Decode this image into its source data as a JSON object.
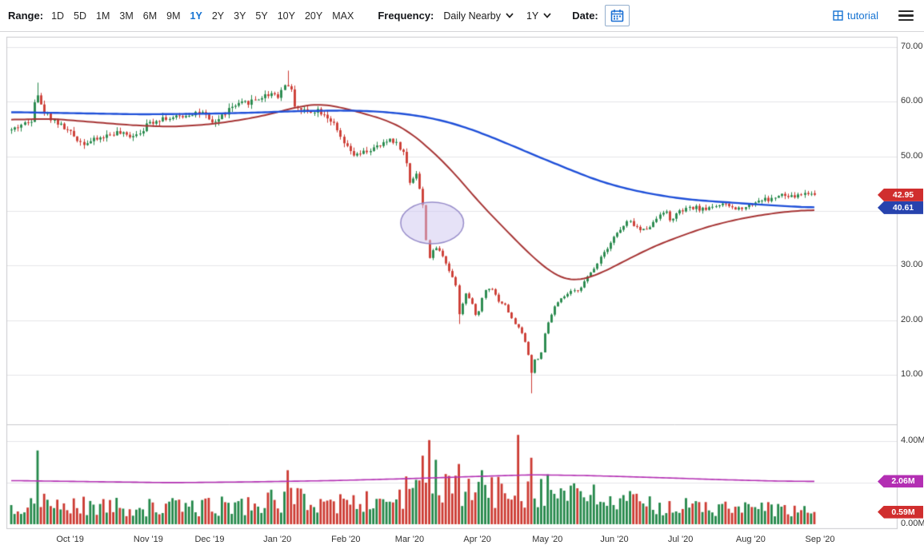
{
  "toolbar": {
    "range_label": "Range:",
    "range_options": [
      "1D",
      "5D",
      "1M",
      "3M",
      "6M",
      "9M",
      "1Y",
      "2Y",
      "3Y",
      "5Y",
      "10Y",
      "20Y",
      "MAX"
    ],
    "active_range": "1Y",
    "frequency_label": "Frequency:",
    "frequency_value": "Daily Nearby",
    "period_value": "1Y",
    "date_label": "Date:",
    "tutorial_label": "tutorial",
    "accent_color": "#1673d2"
  },
  "badges": [
    {
      "id": "last-price",
      "label": "42.95",
      "panel": "price",
      "value": 42.95,
      "color": "#d02e2e"
    },
    {
      "id": "blue-ma",
      "label": "40.61",
      "panel": "price",
      "value": 40.61,
      "color": "#2743ae"
    },
    {
      "id": "avg-volume",
      "label": "2.06M",
      "panel": "volume",
      "value": 2.06,
      "color": "#b32fb3"
    },
    {
      "id": "last-volume",
      "label": "0.59M",
      "panel": "volume",
      "value": 0.59,
      "color": "#d02e2e"
    }
  ],
  "axes": {
    "price_ticks": [
      {
        "label": "70.00",
        "value": 70
      },
      {
        "label": "60.00",
        "value": 60
      },
      {
        "label": "50.00",
        "value": 50
      },
      {
        "label": "30.00",
        "value": 30
      },
      {
        "label": "20.00",
        "value": 20
      },
      {
        "label": "10.00",
        "value": 10
      }
    ],
    "volume_ticks": [
      {
        "label": "4.00M",
        "value": 4
      },
      {
        "label": "0.00M",
        "value": 0
      }
    ],
    "x_labels": [
      {
        "label": "Oct '19",
        "t": 0.075
      },
      {
        "label": "Nov '19",
        "t": 0.172
      },
      {
        "label": "Dec '19",
        "t": 0.248
      },
      {
        "label": "Jan '20",
        "t": 0.332
      },
      {
        "label": "Feb '20",
        "t": 0.417
      },
      {
        "label": "Mar '20",
        "t": 0.496
      },
      {
        "label": "Apr '20",
        "t": 0.58
      },
      {
        "label": "May '20",
        "t": 0.667
      },
      {
        "label": "Jun '20",
        "t": 0.75
      },
      {
        "label": "Jul '20",
        "t": 0.832
      },
      {
        "label": "Aug '20",
        "t": 0.919
      },
      {
        "label": "Sep '20",
        "t": 1.005
      }
    ]
  },
  "chart_data": {
    "type": "candlestick+volume",
    "title": "",
    "num_candles": 245,
    "seed": 42,
    "last_price": 42.95,
    "last_open": 43.25,
    "last_volume": 0.59,
    "price_axis": {
      "min": 1,
      "max": 71.5,
      "gridlines": [
        70,
        60,
        50,
        40,
        30,
        20,
        10
      ]
    },
    "volume_axis": {
      "min": 0,
      "max": 4.6,
      "gridlines": [
        4,
        2
      ]
    },
    "colors": {
      "up": "#24884a",
      "down": "#cc3a32",
      "grid": "#e4e4e8",
      "border": "#c8c8cc"
    },
    "price_close_anchors": [
      [
        0.0,
        54.8
      ],
      [
        0.012,
        55.8
      ],
      [
        0.024,
        56.3
      ],
      [
        0.031,
        62.4
      ],
      [
        0.038,
        58.6
      ],
      [
        0.048,
        57.2
      ],
      [
        0.06,
        55.8
      ],
      [
        0.075,
        54.1
      ],
      [
        0.088,
        52.4
      ],
      [
        0.1,
        52.8
      ],
      [
        0.115,
        53.6
      ],
      [
        0.13,
        54.4
      ],
      [
        0.145,
        53.7
      ],
      [
        0.158,
        54.3
      ],
      [
        0.172,
        56.2
      ],
      [
        0.188,
        57.1
      ],
      [
        0.2,
        56.9
      ],
      [
        0.215,
        57.5
      ],
      [
        0.23,
        58.1
      ],
      [
        0.24,
        57.7
      ],
      [
        0.248,
        55.9
      ],
      [
        0.258,
        56.8
      ],
      [
        0.272,
        58.8
      ],
      [
        0.285,
        59.5
      ],
      [
        0.3,
        60.2
      ],
      [
        0.315,
        61.1
      ],
      [
        0.325,
        61.7
      ],
      [
        0.332,
        61.1
      ],
      [
        0.34,
        63.1
      ],
      [
        0.346,
        63.3
      ],
      [
        0.352,
        59.6
      ],
      [
        0.36,
        58.5
      ],
      [
        0.37,
        58.2
      ],
      [
        0.38,
        58.6
      ],
      [
        0.39,
        57.8
      ],
      [
        0.4,
        56.2
      ],
      [
        0.408,
        53.8
      ],
      [
        0.417,
        51.6
      ],
      [
        0.428,
        50.0
      ],
      [
        0.44,
        50.8
      ],
      [
        0.452,
        51.5
      ],
      [
        0.462,
        52.1
      ],
      [
        0.472,
        53.3
      ],
      [
        0.482,
        52.0
      ],
      [
        0.49,
        50.1
      ],
      [
        0.496,
        45.2
      ],
      [
        0.504,
        47.1
      ],
      [
        0.512,
        41.3
      ],
      [
        0.519,
        31.1
      ],
      [
        0.528,
        33.4
      ],
      [
        0.538,
        31.7
      ],
      [
        0.546,
        28.7
      ],
      [
        0.553,
        26.9
      ],
      [
        0.558,
        20.4
      ],
      [
        0.564,
        25.2
      ],
      [
        0.572,
        23.5
      ],
      [
        0.58,
        20.3
      ],
      [
        0.588,
        25.3
      ],
      [
        0.597,
        26.2
      ],
      [
        0.606,
        23.6
      ],
      [
        0.615,
        22.7
      ],
      [
        0.624,
        19.9
      ],
      [
        0.633,
        18.3
      ],
      [
        0.641,
        15.6
      ],
      [
        0.648,
        10.0
      ],
      [
        0.653,
        13.8
      ],
      [
        0.658,
        12.3
      ],
      [
        0.663,
        16.9
      ],
      [
        0.667,
        19.2
      ],
      [
        0.676,
        22.4
      ],
      [
        0.686,
        24.1
      ],
      [
        0.696,
        25.1
      ],
      [
        0.706,
        25.6
      ],
      [
        0.716,
        27.6
      ],
      [
        0.726,
        29.6
      ],
      [
        0.734,
        31.8
      ],
      [
        0.742,
        33.4
      ],
      [
        0.75,
        35.3
      ],
      [
        0.76,
        36.8
      ],
      [
        0.768,
        38.2
      ],
      [
        0.776,
        37.3
      ],
      [
        0.784,
        36.3
      ],
      [
        0.792,
        37.0
      ],
      [
        0.8,
        37.9
      ],
      [
        0.808,
        39.7
      ],
      [
        0.814,
        40.2
      ],
      [
        0.82,
        38.1
      ],
      [
        0.826,
        39.2
      ],
      [
        0.832,
        39.8
      ],
      [
        0.842,
        40.4
      ],
      [
        0.852,
        40.6
      ],
      [
        0.862,
        40.2
      ],
      [
        0.872,
        40.9
      ],
      [
        0.882,
        41.1
      ],
      [
        0.892,
        41.0
      ],
      [
        0.902,
        40.3
      ],
      [
        0.91,
        40.7
      ],
      [
        0.919,
        41.1
      ],
      [
        0.928,
        41.8
      ],
      [
        0.936,
        42.2
      ],
      [
        0.944,
        42.0
      ],
      [
        0.952,
        42.6
      ],
      [
        0.96,
        42.9
      ],
      [
        0.968,
        42.5
      ],
      [
        0.976,
        42.7
      ],
      [
        0.984,
        43.1
      ],
      [
        0.992,
        43.3
      ],
      [
        1.0,
        42.95
      ]
    ],
    "wick_overrides": [
      {
        "t": 0.031,
        "high": 63.5
      },
      {
        "t": 0.346,
        "high": 65.7
      },
      {
        "t": 0.558,
        "low": 19.3
      },
      {
        "t": 0.648,
        "low": 6.6
      }
    ],
    "ma_blue": {
      "name": "long-moving-average",
      "color": "#1e4fd8",
      "end_value": 40.61,
      "anchors": [
        [
          0.0,
          58.1
        ],
        [
          0.08,
          57.9
        ],
        [
          0.16,
          57.7
        ],
        [
          0.24,
          57.8
        ],
        [
          0.3,
          58.0
        ],
        [
          0.36,
          58.3
        ],
        [
          0.42,
          58.4
        ],
        [
          0.46,
          58.2
        ],
        [
          0.5,
          57.6
        ],
        [
          0.53,
          56.8
        ],
        [
          0.56,
          55.6
        ],
        [
          0.59,
          54.0
        ],
        [
          0.62,
          52.2
        ],
        [
          0.65,
          50.3
        ],
        [
          0.667,
          49.3
        ],
        [
          0.7,
          47.3
        ],
        [
          0.73,
          45.6
        ],
        [
          0.75,
          44.7
        ],
        [
          0.78,
          43.6
        ],
        [
          0.81,
          42.8
        ],
        [
          0.832,
          42.3
        ],
        [
          0.86,
          41.9
        ],
        [
          0.89,
          41.6
        ],
        [
          0.919,
          41.3
        ],
        [
          0.95,
          41.0
        ],
        [
          0.975,
          40.8
        ],
        [
          1.0,
          40.61
        ]
      ]
    },
    "ma_red": {
      "name": "mid-moving-average",
      "color": "#a63434",
      "end_value": 40.2,
      "anchors": [
        [
          0.0,
          56.7
        ],
        [
          0.05,
          56.9
        ],
        [
          0.1,
          56.3
        ],
        [
          0.15,
          55.7
        ],
        [
          0.2,
          55.4
        ],
        [
          0.25,
          55.9
        ],
        [
          0.3,
          57.0
        ],
        [
          0.332,
          58.1
        ],
        [
          0.36,
          59.2
        ],
        [
          0.385,
          59.6
        ],
        [
          0.41,
          59.0
        ],
        [
          0.44,
          57.8
        ],
        [
          0.47,
          56.5
        ],
        [
          0.496,
          54.5
        ],
        [
          0.52,
          51.5
        ],
        [
          0.545,
          48.0
        ],
        [
          0.57,
          43.8
        ],
        [
          0.58,
          42.0
        ],
        [
          0.6,
          38.9
        ],
        [
          0.62,
          35.9
        ],
        [
          0.64,
          32.9
        ],
        [
          0.655,
          30.8
        ],
        [
          0.667,
          29.4
        ],
        [
          0.68,
          28.0
        ],
        [
          0.695,
          27.2
        ],
        [
          0.71,
          27.4
        ],
        [
          0.73,
          28.3
        ],
        [
          0.75,
          29.8
        ],
        [
          0.77,
          31.3
        ],
        [
          0.79,
          32.8
        ],
        [
          0.81,
          34.1
        ],
        [
          0.832,
          35.3
        ],
        [
          0.86,
          36.8
        ],
        [
          0.89,
          38.0
        ],
        [
          0.919,
          38.9
        ],
        [
          0.95,
          39.6
        ],
        [
          0.975,
          40.0
        ],
        [
          1.0,
          40.2
        ]
      ]
    },
    "volume_base_anchors": [
      [
        0.0,
        1.0
      ],
      [
        0.08,
        0.9
      ],
      [
        0.16,
        0.8
      ],
      [
        0.24,
        0.85
      ],
      [
        0.3,
        0.95
      ],
      [
        0.346,
        1.2
      ],
      [
        0.4,
        1.0
      ],
      [
        0.46,
        1.1
      ],
      [
        0.5,
        1.5
      ],
      [
        0.55,
        1.6
      ],
      [
        0.6,
        1.5
      ],
      [
        0.65,
        1.7
      ],
      [
        0.7,
        1.4
      ],
      [
        0.75,
        1.1
      ],
      [
        0.8,
        0.95
      ],
      [
        0.85,
        0.8
      ],
      [
        0.9,
        0.75
      ],
      [
        0.95,
        0.7
      ],
      [
        1.0,
        0.6
      ]
    ],
    "volume_spikes": [
      {
        "t": 0.031,
        "v": 3.55
      },
      {
        "t": 0.346,
        "v": 2.6
      },
      {
        "t": 0.49,
        "v": 2.3
      },
      {
        "t": 0.512,
        "v": 3.3
      },
      {
        "t": 0.519,
        "v": 4.05
      },
      {
        "t": 0.53,
        "v": 3.1
      },
      {
        "t": 0.558,
        "v": 2.9
      },
      {
        "t": 0.588,
        "v": 2.6
      },
      {
        "t": 0.633,
        "v": 4.3
      },
      {
        "t": 0.648,
        "v": 3.2
      },
      {
        "t": 0.667,
        "v": 2.4
      }
    ],
    "volume_avg": {
      "name": "average-volume",
      "color": "#b32fb3",
      "end_value": 2.06,
      "anchors": [
        [
          0.0,
          2.1
        ],
        [
          0.1,
          2.05
        ],
        [
          0.2,
          2.0
        ],
        [
          0.3,
          2.04
        ],
        [
          0.4,
          2.1
        ],
        [
          0.5,
          2.2
        ],
        [
          0.58,
          2.3
        ],
        [
          0.65,
          2.38
        ],
        [
          0.72,
          2.34
        ],
        [
          0.8,
          2.25
        ],
        [
          0.88,
          2.15
        ],
        [
          0.95,
          2.08
        ],
        [
          1.0,
          2.06
        ]
      ]
    },
    "annotation_ellipse": {
      "t": 0.524,
      "price": 37.8,
      "rx_t": 0.039,
      "ry_price": 3.8,
      "fill": "rgba(206,198,240,0.5)",
      "stroke": "#978cc9"
    }
  }
}
